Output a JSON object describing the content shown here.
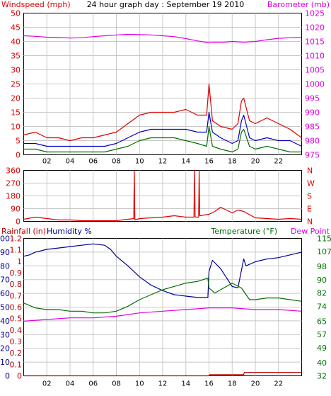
{
  "header": {
    "title": "24 hour graph day : September 19 2010",
    "left_label": "Windspeed (mph)",
    "right_label": "Barometer (mb)"
  },
  "colors": {
    "frame": "#000000",
    "grid": "#c8c8c8",
    "wind_speed": "#e00000",
    "wind_avg": "#0000c0",
    "wind_low": "#007000",
    "barometer": "#e000e0",
    "direction": "#e00000",
    "rainfall": "#c00000",
    "humidity": "#000090",
    "temperature": "#007000",
    "dew_point": "#e000e0"
  },
  "chart_data": [
    {
      "type": "line",
      "panel": "wind",
      "x_label": "",
      "x_ticks": [
        "02",
        "04",
        "06",
        "08",
        "10",
        "12",
        "14",
        "16",
        "18",
        "20",
        "22",
        ""
      ],
      "y_left": {
        "label": "Windspeed (mph)",
        "ticks": [
          0,
          5,
          10,
          15,
          20,
          25,
          30,
          35,
          40,
          45,
          50
        ],
        "range": [
          0,
          50
        ]
      },
      "y_right": {
        "label": "Barometer (mb)",
        "ticks": [
          975,
          980,
          985,
          990,
          995,
          1000,
          1005,
          1010,
          1015,
          1020,
          1025
        ],
        "range": [
          975,
          1025
        ]
      },
      "x_range": [
        0,
        24
      ],
      "grid": true,
      "series": [
        {
          "key": "wind_speed",
          "axis": "left",
          "x": [
            0,
            1,
            2,
            3,
            4,
            5,
            6,
            7,
            8,
            9,
            10,
            11,
            12,
            13,
            14,
            15,
            15.8,
            16,
            16.3,
            17,
            18,
            18.5,
            18.8,
            19,
            19.5,
            20,
            21,
            22,
            23,
            24
          ],
          "values": [
            7,
            8,
            6,
            6,
            5,
            6,
            6,
            7,
            8,
            11,
            14,
            15,
            15,
            15,
            16,
            14,
            14,
            25,
            12,
            10,
            9,
            11,
            19,
            20,
            12,
            11,
            13,
            11,
            9,
            6
          ]
        },
        {
          "key": "wind_avg",
          "axis": "left",
          "x": [
            0,
            1,
            2,
            3,
            4,
            5,
            6,
            7,
            8,
            9,
            10,
            11,
            12,
            13,
            14,
            15,
            15.8,
            16,
            16.3,
            17,
            18,
            18.5,
            18.8,
            19,
            19.5,
            20,
            21,
            22,
            23,
            24
          ],
          "values": [
            4,
            4,
            3,
            3,
            3,
            3,
            3,
            3,
            4,
            6,
            8,
            9,
            9,
            9,
            9,
            8,
            8,
            15,
            8,
            6,
            4,
            5,
            12,
            14,
            6,
            5,
            6,
            5,
            5,
            3
          ]
        },
        {
          "key": "wind_low",
          "axis": "left",
          "x": [
            0,
            1,
            2,
            3,
            4,
            5,
            6,
            7,
            8,
            9,
            10,
            11,
            12,
            13,
            14,
            15,
            15.8,
            16,
            16.3,
            17,
            18,
            18.5,
            18.8,
            19,
            19.5,
            20,
            21,
            22,
            23,
            24
          ],
          "values": [
            2,
            2,
            1,
            1,
            1,
            1,
            1,
            1,
            2,
            3,
            5,
            6,
            6,
            6,
            5,
            4,
            3,
            10,
            3,
            2,
            1,
            2,
            8,
            9,
            3,
            2,
            3,
            2,
            1,
            1
          ]
        },
        {
          "key": "barometer",
          "axis": "right",
          "x": [
            0,
            1,
            2,
            3,
            4,
            5,
            6,
            7,
            8,
            9,
            10,
            11,
            12,
            13,
            14,
            15,
            16,
            17,
            18,
            19,
            20,
            21,
            22,
            23,
            24
          ],
          "values": [
            1017,
            1016.8,
            1016.5,
            1016.4,
            1016.2,
            1016.3,
            1016.7,
            1017,
            1017.3,
            1017.5,
            1017.4,
            1017.3,
            1017.0,
            1016.7,
            1016.0,
            1015.2,
            1014.5,
            1014.6,
            1015.0,
            1014.7,
            1015.0,
            1015.6,
            1016.1,
            1016.3,
            1016.4
          ]
        }
      ]
    },
    {
      "type": "line",
      "panel": "direction",
      "y_left": {
        "label": "",
        "ticks": [
          0,
          90,
          180,
          270,
          360
        ],
        "tick_labels": [
          "0",
          "90",
          "180",
          "270",
          "360"
        ],
        "range": [
          0,
          360
        ]
      },
      "y_right": {
        "label": "",
        "ticks": [
          0,
          90,
          180,
          270,
          360
        ],
        "tick_labels": [
          "N",
          "E",
          "S",
          "W",
          "N"
        ],
        "range": [
          0,
          360
        ]
      },
      "x_range": [
        0,
        24
      ],
      "grid": true,
      "series": [
        {
          "key": "direction",
          "axis": "left",
          "x": [
            0,
            1,
            2,
            3,
            4,
            5,
            6,
            7,
            8,
            9,
            9.5,
            9.55,
            9.6,
            10,
            11,
            12,
            13,
            14,
            14.7,
            14.75,
            14.8,
            15.1,
            15.15,
            15.2,
            16,
            16.5,
            17,
            17.5,
            18,
            18.5,
            19,
            20,
            21,
            22,
            23,
            24
          ],
          "values": [
            15,
            30,
            20,
            10,
            10,
            5,
            5,
            5,
            5,
            15,
            20,
            360,
            10,
            20,
            25,
            30,
            40,
            30,
            30,
            360,
            30,
            30,
            360,
            40,
            50,
            70,
            100,
            80,
            60,
            80,
            70,
            25,
            20,
            15,
            20,
            15
          ]
        }
      ]
    },
    {
      "type": "line",
      "panel": "climate",
      "header_left": [
        "Rainfall (in)",
        "Humidity %"
      ],
      "header_right": [
        "Temperature (°F)",
        "Dew Point"
      ],
      "y_left_inner": {
        "label": "Rainfall (in)",
        "ticks": [
          0,
          0.1,
          0.2,
          0.3,
          0.4,
          0.5,
          0.6,
          0.7,
          0.8,
          0.9,
          1,
          1.1,
          1.2
        ],
        "range": [
          0,
          1.2
        ]
      },
      "y_left_outer": {
        "label": "Humidity %",
        "ticks": [
          0,
          10,
          20,
          30,
          40,
          50,
          60,
          70,
          80,
          90,
          100
        ],
        "range": [
          0,
          100
        ]
      },
      "y_right": {
        "label": "Temperature (°F)",
        "ticks": [
          32,
          40,
          49,
          57,
          65,
          74,
          82,
          90,
          98,
          107,
          115
        ],
        "range": [
          32,
          115
        ]
      },
      "x_range": [
        0,
        24
      ],
      "grid": true,
      "series": [
        {
          "key": "humidity",
          "axis": "left_outer",
          "x": [
            0,
            0.5,
            1,
            2,
            3,
            4,
            5,
            6,
            7,
            7.5,
            8,
            9,
            10,
            11,
            12,
            13,
            14,
            15,
            15.9,
            16,
            16.3,
            17,
            18,
            18.5,
            19,
            19.2,
            20,
            21,
            22,
            23,
            24
          ],
          "values": [
            87,
            88,
            90,
            92,
            93,
            94,
            95,
            96,
            95,
            92,
            87,
            80,
            72,
            66,
            62,
            59,
            58,
            57,
            57,
            76,
            84,
            78,
            65,
            64,
            85,
            80,
            83,
            85,
            86,
            88,
            90
          ]
        },
        {
          "key": "temperature",
          "axis": "right",
          "x": [
            0,
            1,
            2,
            3,
            4,
            5,
            6,
            7,
            8,
            9,
            10,
            11,
            12,
            13,
            14,
            15,
            15.9,
            16,
            16.5,
            17,
            18,
            18.8,
            19.5,
            20,
            21,
            22,
            23,
            24
          ],
          "values": [
            76,
            73,
            72,
            72,
            71,
            71,
            70,
            70,
            71,
            74,
            78,
            81,
            84,
            86,
            88,
            89,
            91,
            85,
            82,
            84,
            88,
            85,
            78,
            78,
            79,
            79,
            78,
            77
          ]
        },
        {
          "key": "dew_point",
          "axis": "right",
          "x": [
            0,
            2,
            4,
            6,
            8,
            10,
            12,
            14,
            16,
            18,
            20,
            22,
            24
          ],
          "values": [
            65,
            66,
            67,
            67,
            68,
            70,
            71,
            72,
            73,
            73,
            72,
            72,
            71
          ]
        },
        {
          "key": "rainfall",
          "axis": "left_inner",
          "x": [
            0,
            16,
            16.05,
            19,
            19.05,
            24
          ],
          "values": [
            0,
            0,
            0.01,
            0.01,
            0.03,
            0.03
          ]
        }
      ]
    }
  ]
}
